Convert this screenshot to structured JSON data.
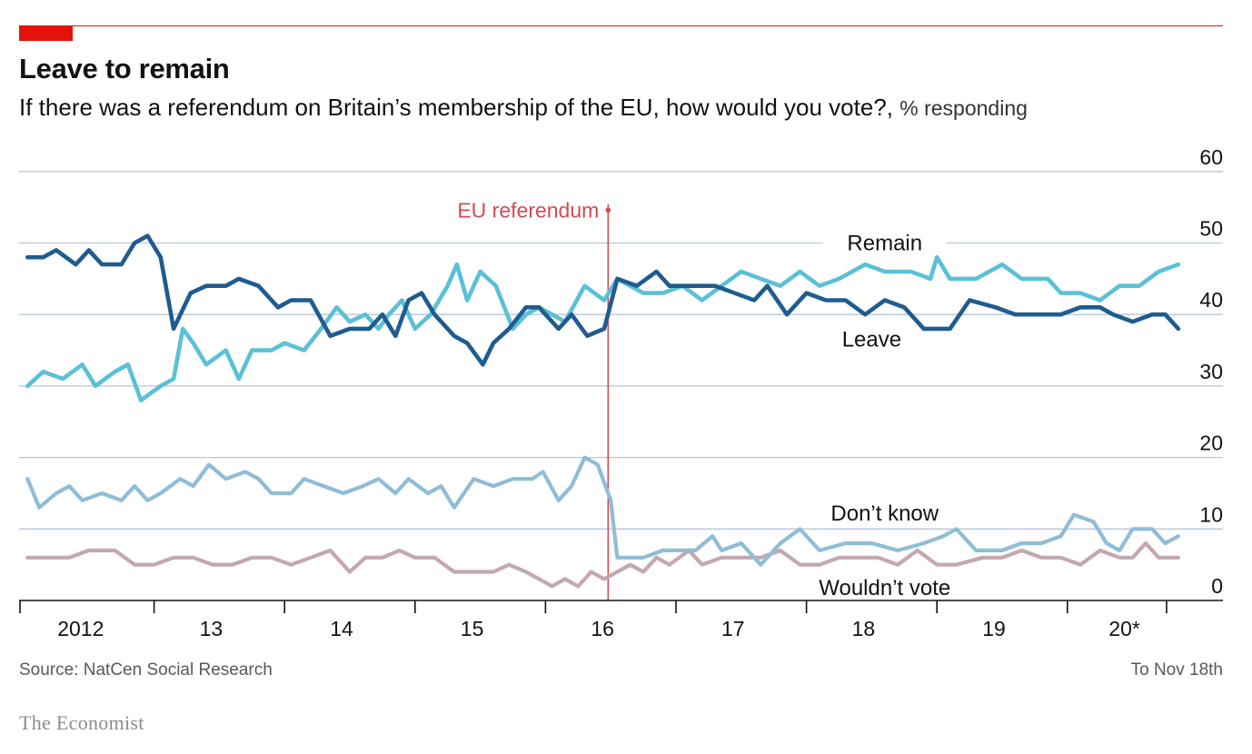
{
  "header": {
    "title": "Leave to remain",
    "subtitle": "If there was a referendum on Britain’s membership of the EU, how would you vote?,",
    "unit": "% responding"
  },
  "footer": {
    "source": "Source: NatCen Social Research",
    "note": "To Nov 18th",
    "brand": "The Economist"
  },
  "colors": {
    "accent": "#e3120b",
    "remain": "#5bc0d6",
    "leave": "#1f5c8f",
    "dont_know": "#8fbdd6",
    "wouldnt_vote": "#c3a8b0",
    "referendum": "#d4494f",
    "grid": "#b7c6d9"
  },
  "chart_data": {
    "type": "line",
    "title": "Leave to remain",
    "ylim": [
      0,
      60
    ],
    "yticks": [
      0,
      10,
      20,
      30,
      40,
      50,
      60
    ],
    "xlim": [
      2012.0,
      2020.9
    ],
    "x_tick_labels": [
      {
        "x": 2012.5,
        "label": "2012"
      },
      {
        "x": 2013.5,
        "label": "13"
      },
      {
        "x": 2014.5,
        "label": "14"
      },
      {
        "x": 2015.5,
        "label": "15"
      },
      {
        "x": 2016.5,
        "label": "16"
      },
      {
        "x": 2017.5,
        "label": "17"
      },
      {
        "x": 2018.5,
        "label": "18"
      },
      {
        "x": 2019.5,
        "label": "19"
      },
      {
        "x": 2020.5,
        "label": "20*"
      }
    ],
    "x_boundaries": [
      2012.0,
      2013.0,
      2014.0,
      2015.0,
      2016.0,
      2017.0,
      2018.0,
      2019.0,
      2020.0
    ],
    "grid": true,
    "annotation": {
      "x": 2016.48,
      "label": "EU referendum"
    },
    "series": [
      {
        "name": "Remain",
        "key": "remain",
        "label_at": [
          2018.6,
          50
        ],
        "points": [
          [
            2012.03,
            30
          ],
          [
            2012.15,
            32
          ],
          [
            2012.3,
            31
          ],
          [
            2012.45,
            33
          ],
          [
            2012.55,
            30
          ],
          [
            2012.7,
            32
          ],
          [
            2012.8,
            33
          ],
          [
            2012.9,
            28
          ],
          [
            2013.05,
            30
          ],
          [
            2013.15,
            31
          ],
          [
            2013.22,
            38
          ],
          [
            2013.3,
            36
          ],
          [
            2013.4,
            33
          ],
          [
            2013.55,
            35
          ],
          [
            2013.65,
            31
          ],
          [
            2013.75,
            35
          ],
          [
            2013.9,
            35
          ],
          [
            2014.0,
            36
          ],
          [
            2014.15,
            35
          ],
          [
            2014.28,
            38
          ],
          [
            2014.4,
            41
          ],
          [
            2014.5,
            39
          ],
          [
            2014.62,
            40
          ],
          [
            2014.72,
            38
          ],
          [
            2014.8,
            40
          ],
          [
            2014.9,
            42
          ],
          [
            2015.0,
            38
          ],
          [
            2015.12,
            40
          ],
          [
            2015.25,
            44
          ],
          [
            2015.32,
            47
          ],
          [
            2015.4,
            42
          ],
          [
            2015.5,
            46
          ],
          [
            2015.62,
            44
          ],
          [
            2015.75,
            38
          ],
          [
            2015.85,
            40
          ],
          [
            2015.95,
            41
          ],
          [
            2016.05,
            40
          ],
          [
            2016.15,
            39
          ],
          [
            2016.3,
            44
          ],
          [
            2016.45,
            42
          ],
          [
            2016.55,
            45
          ],
          [
            2016.65,
            44
          ],
          [
            2016.75,
            43
          ],
          [
            2016.9,
            43
          ],
          [
            2017.05,
            44
          ],
          [
            2017.2,
            42
          ],
          [
            2017.35,
            44
          ],
          [
            2017.5,
            46
          ],
          [
            2017.65,
            45
          ],
          [
            2017.8,
            44
          ],
          [
            2017.95,
            46
          ],
          [
            2018.1,
            44
          ],
          [
            2018.25,
            45
          ],
          [
            2018.45,
            47
          ],
          [
            2018.6,
            46
          ],
          [
            2018.8,
            46
          ],
          [
            2018.95,
            45
          ],
          [
            2019.0,
            48
          ],
          [
            2019.1,
            45
          ],
          [
            2019.3,
            45
          ],
          [
            2019.5,
            47
          ],
          [
            2019.65,
            45
          ],
          [
            2019.85,
            45
          ],
          [
            2019.95,
            43
          ],
          [
            2020.1,
            43
          ],
          [
            2020.25,
            42
          ],
          [
            2020.4,
            44
          ],
          [
            2020.55,
            44
          ],
          [
            2020.7,
            46
          ],
          [
            2020.85,
            47
          ]
        ]
      },
      {
        "name": "Leave",
        "key": "leave",
        "label_at": [
          2018.5,
          36.5
        ],
        "points": [
          [
            2012.03,
            48
          ],
          [
            2012.15,
            48
          ],
          [
            2012.25,
            49
          ],
          [
            2012.4,
            47
          ],
          [
            2012.5,
            49
          ],
          [
            2012.6,
            47
          ],
          [
            2012.75,
            47
          ],
          [
            2012.85,
            50
          ],
          [
            2012.95,
            51
          ],
          [
            2013.05,
            48
          ],
          [
            2013.15,
            38
          ],
          [
            2013.28,
            43
          ],
          [
            2013.4,
            44
          ],
          [
            2013.55,
            44
          ],
          [
            2013.65,
            45
          ],
          [
            2013.8,
            44
          ],
          [
            2013.95,
            41
          ],
          [
            2014.05,
            42
          ],
          [
            2014.2,
            42
          ],
          [
            2014.35,
            37
          ],
          [
            2014.5,
            38
          ],
          [
            2014.65,
            38
          ],
          [
            2014.75,
            40
          ],
          [
            2014.85,
            37
          ],
          [
            2014.95,
            42
          ],
          [
            2015.05,
            43
          ],
          [
            2015.15,
            40
          ],
          [
            2015.3,
            37
          ],
          [
            2015.4,
            36
          ],
          [
            2015.52,
            33
          ],
          [
            2015.6,
            36
          ],
          [
            2015.72,
            38
          ],
          [
            2015.85,
            41
          ],
          [
            2015.95,
            41
          ],
          [
            2016.1,
            38
          ],
          [
            2016.2,
            40
          ],
          [
            2016.32,
            37
          ],
          [
            2016.45,
            38
          ],
          [
            2016.55,
            45
          ],
          [
            2016.7,
            44
          ],
          [
            2016.85,
            46
          ],
          [
            2016.95,
            44
          ],
          [
            2017.15,
            44
          ],
          [
            2017.3,
            44
          ],
          [
            2017.45,
            43
          ],
          [
            2017.6,
            42
          ],
          [
            2017.7,
            44
          ],
          [
            2017.85,
            40
          ],
          [
            2018.0,
            43
          ],
          [
            2018.15,
            42
          ],
          [
            2018.3,
            42
          ],
          [
            2018.45,
            40
          ],
          [
            2018.6,
            42
          ],
          [
            2018.75,
            41
          ],
          [
            2018.9,
            38
          ],
          [
            2019.1,
            38
          ],
          [
            2019.25,
            42
          ],
          [
            2019.45,
            41
          ],
          [
            2019.6,
            40
          ],
          [
            2019.8,
            40
          ],
          [
            2019.95,
            40
          ],
          [
            2020.1,
            41
          ],
          [
            2020.25,
            41
          ],
          [
            2020.35,
            40
          ],
          [
            2020.5,
            39
          ],
          [
            2020.65,
            40
          ],
          [
            2020.75,
            40
          ],
          [
            2020.85,
            38
          ]
        ]
      },
      {
        "name": "Don’t know",
        "key": "dont_know",
        "label_at": [
          2018.6,
          12.2
        ],
        "points": [
          [
            2012.03,
            17
          ],
          [
            2012.12,
            13
          ],
          [
            2012.25,
            15
          ],
          [
            2012.35,
            16
          ],
          [
            2012.45,
            14
          ],
          [
            2012.6,
            15
          ],
          [
            2012.75,
            14
          ],
          [
            2012.85,
            16
          ],
          [
            2012.95,
            14
          ],
          [
            2013.05,
            15
          ],
          [
            2013.2,
            17
          ],
          [
            2013.3,
            16
          ],
          [
            2013.42,
            19
          ],
          [
            2013.55,
            17
          ],
          [
            2013.7,
            18
          ],
          [
            2013.8,
            17
          ],
          [
            2013.9,
            15
          ],
          [
            2014.05,
            15
          ],
          [
            2014.15,
            17
          ],
          [
            2014.3,
            16
          ],
          [
            2014.45,
            15
          ],
          [
            2014.6,
            16
          ],
          [
            2014.72,
            17
          ],
          [
            2014.85,
            15
          ],
          [
            2014.95,
            17
          ],
          [
            2015.1,
            15
          ],
          [
            2015.2,
            16
          ],
          [
            2015.3,
            13
          ],
          [
            2015.45,
            17
          ],
          [
            2015.6,
            16
          ],
          [
            2015.75,
            17
          ],
          [
            2015.9,
            17
          ],
          [
            2015.98,
            18
          ],
          [
            2016.1,
            14
          ],
          [
            2016.2,
            16
          ],
          [
            2016.3,
            20
          ],
          [
            2016.4,
            19
          ],
          [
            2016.5,
            14
          ],
          [
            2016.55,
            6
          ],
          [
            2016.75,
            6
          ],
          [
            2016.9,
            7
          ],
          [
            2017.05,
            7
          ],
          [
            2017.15,
            7
          ],
          [
            2017.28,
            9
          ],
          [
            2017.35,
            7
          ],
          [
            2017.5,
            8
          ],
          [
            2017.65,
            5
          ],
          [
            2017.8,
            8
          ],
          [
            2017.95,
            10
          ],
          [
            2018.1,
            7
          ],
          [
            2018.3,
            8
          ],
          [
            2018.5,
            8
          ],
          [
            2018.7,
            7
          ],
          [
            2018.9,
            8
          ],
          [
            2019.05,
            9
          ],
          [
            2019.15,
            10
          ],
          [
            2019.3,
            7
          ],
          [
            2019.5,
            7
          ],
          [
            2019.65,
            8
          ],
          [
            2019.8,
            8
          ],
          [
            2019.95,
            9
          ],
          [
            2020.05,
            12
          ],
          [
            2020.2,
            11
          ],
          [
            2020.3,
            8
          ],
          [
            2020.4,
            7
          ],
          [
            2020.5,
            10
          ],
          [
            2020.65,
            10
          ],
          [
            2020.75,
            8
          ],
          [
            2020.85,
            9
          ]
        ]
      },
      {
        "name": "Wouldn’t vote",
        "key": "wouldnt_vote",
        "label_at": [
          2018.6,
          1.8
        ],
        "points": [
          [
            2012.03,
            6
          ],
          [
            2012.2,
            6
          ],
          [
            2012.35,
            6
          ],
          [
            2012.5,
            7
          ],
          [
            2012.7,
            7
          ],
          [
            2012.85,
            5
          ],
          [
            2013.0,
            5
          ],
          [
            2013.15,
            6
          ],
          [
            2013.3,
            6
          ],
          [
            2013.45,
            5
          ],
          [
            2013.6,
            5
          ],
          [
            2013.75,
            6
          ],
          [
            2013.9,
            6
          ],
          [
            2014.05,
            5
          ],
          [
            2014.2,
            6
          ],
          [
            2014.35,
            7
          ],
          [
            2014.5,
            4
          ],
          [
            2014.62,
            6
          ],
          [
            2014.75,
            6
          ],
          [
            2014.88,
            7
          ],
          [
            2015.0,
            6
          ],
          [
            2015.15,
            6
          ],
          [
            2015.3,
            4
          ],
          [
            2015.45,
            4
          ],
          [
            2015.6,
            4
          ],
          [
            2015.72,
            5
          ],
          [
            2015.85,
            4
          ],
          [
            2015.95,
            3
          ],
          [
            2016.05,
            2
          ],
          [
            2016.15,
            3
          ],
          [
            2016.25,
            2
          ],
          [
            2016.35,
            4
          ],
          [
            2016.45,
            3
          ],
          [
            2016.55,
            4
          ],
          [
            2016.65,
            5
          ],
          [
            2016.75,
            4
          ],
          [
            2016.85,
            6
          ],
          [
            2016.95,
            5
          ],
          [
            2017.1,
            7
          ],
          [
            2017.2,
            5
          ],
          [
            2017.35,
            6
          ],
          [
            2017.5,
            6
          ],
          [
            2017.65,
            6
          ],
          [
            2017.8,
            7
          ],
          [
            2017.95,
            5
          ],
          [
            2018.1,
            5
          ],
          [
            2018.25,
            6
          ],
          [
            2018.4,
            6
          ],
          [
            2018.55,
            6
          ],
          [
            2018.7,
            5
          ],
          [
            2018.85,
            7
          ],
          [
            2019.0,
            5
          ],
          [
            2019.15,
            5
          ],
          [
            2019.35,
            6
          ],
          [
            2019.5,
            6
          ],
          [
            2019.65,
            7
          ],
          [
            2019.8,
            6
          ],
          [
            2019.95,
            6
          ],
          [
            2020.1,
            5
          ],
          [
            2020.25,
            7
          ],
          [
            2020.4,
            6
          ],
          [
            2020.5,
            6
          ],
          [
            2020.6,
            8
          ],
          [
            2020.7,
            6
          ],
          [
            2020.85,
            6
          ]
        ]
      }
    ]
  }
}
